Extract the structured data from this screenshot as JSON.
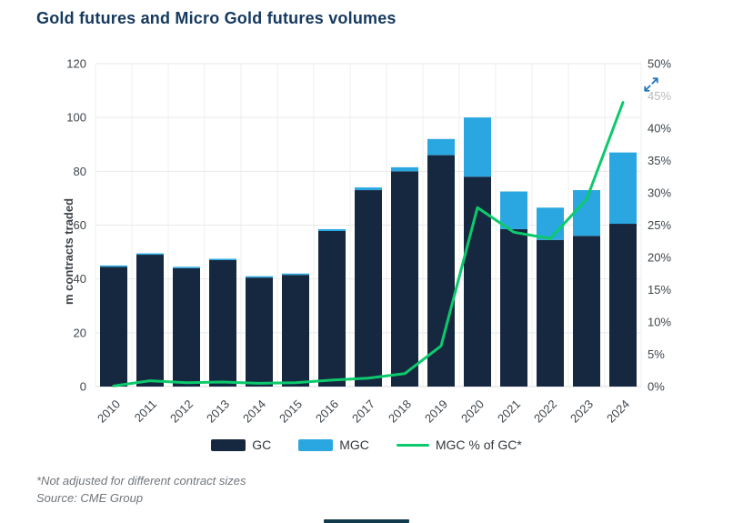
{
  "header": {
    "title": "Gold futures and Micro Gold futures volumes"
  },
  "controls": {
    "expand_icon": "expand-arrows",
    "expand_color": "#2273bd"
  },
  "chart_data": {
    "type": "bar",
    "subtype": "stacked-bars-with-line",
    "title": "Gold futures and Micro Gold futures volumes",
    "categories": [
      "2010",
      "2011",
      "2012",
      "2013",
      "2014",
      "2015",
      "2016",
      "2017",
      "2018",
      "2019",
      "2020",
      "2021",
      "2022",
      "2023",
      "2024"
    ],
    "series": [
      {
        "name": "GC",
        "type": "bar",
        "axis": "left",
        "color": "#16283f",
        "values": [
          44.5,
          49,
          44,
          47,
          40.5,
          41.5,
          57.8,
          73,
          80,
          86,
          78,
          58.5,
          54.5,
          56,
          60.5
        ]
      },
      {
        "name": "MGC",
        "type": "bar",
        "axis": "left",
        "color": "#2aa7e1",
        "values": [
          0.5,
          0.5,
          0.5,
          0.5,
          0.5,
          0.5,
          0.7,
          1,
          1.5,
          6,
          22,
          14,
          12,
          17,
          26.5
        ]
      },
      {
        "name": "MGC % of GC*",
        "type": "line",
        "axis": "right",
        "color": "#0cca6c",
        "values": [
          0.1,
          0.9,
          0.6,
          0.7,
          0.5,
          0.6,
          1.0,
          1.3,
          2.0,
          6.3,
          27.7,
          23.9,
          22.9,
          29.0,
          44.0
        ]
      }
    ],
    "left_axis": {
      "label": "m contracts traded",
      "min": 0,
      "max": 120,
      "step": 20,
      "ticks": [
        "0",
        "20",
        "40",
        "60",
        "80",
        "100",
        "120"
      ]
    },
    "right_axis": {
      "min": 0,
      "max": 50,
      "step": 5,
      "ticks": [
        "0%",
        "5%",
        "10%",
        "15%",
        "20%",
        "25%",
        "30%",
        "35%",
        "40%",
        "45%",
        "50%"
      ],
      "dimmed_tick": "45%"
    },
    "grid": true,
    "legend_position": "bottom"
  },
  "footnotes": {
    "note": "*Not adjusted for different contract sizes",
    "source": "Source: CME Group"
  },
  "colors": {
    "title": "#15395f",
    "tick_text": "#3f464c",
    "dimmed_tick_text": "#b7babd",
    "gridline": "#e9eaeb",
    "vertical_gridline": "#eef0f1",
    "baseline": "#dcdee0"
  }
}
